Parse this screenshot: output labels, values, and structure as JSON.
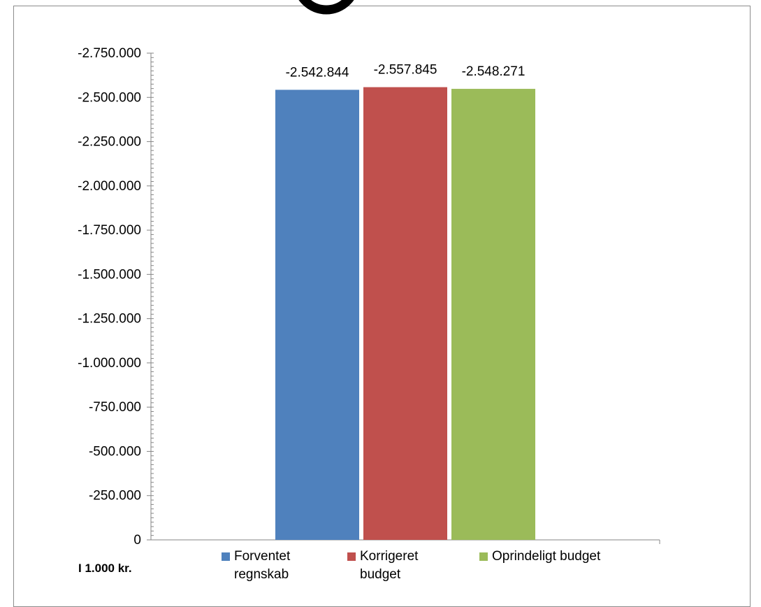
{
  "chart_data": {
    "type": "bar",
    "title": "",
    "xlabel": "",
    "ylabel": "",
    "y_axis_note": "I 1.000 kr.",
    "ylim": [
      0,
      -2750000
    ],
    "y_axis_inverted": true,
    "y_ticks": [
      0,
      -250000,
      -500000,
      -750000,
      -1000000,
      -1250000,
      -1500000,
      -1750000,
      -2000000,
      -2250000,
      -2500000,
      -2750000
    ],
    "y_tick_labels": [
      "0",
      "-250.000",
      "-500.000",
      "-750.000",
      "-1.000.000",
      "-1.250.000",
      "-1.500.000",
      "-1.750.000",
      "-2.000.000",
      "-2.250.000",
      "-2.500.000",
      "-2.750.000"
    ],
    "grid": false,
    "legend_position": "bottom",
    "series": [
      {
        "name": "Forventet\nregnskab",
        "value": -2542844,
        "data_label": "-2.542.844",
        "color": "#4f81bd"
      },
      {
        "name": "Korrigeret\nbudget",
        "value": -2557845,
        "data_label": "-2.557.845",
        "color": "#c0504d"
      },
      {
        "name": "Oprindeligt budget",
        "value": -2548271,
        "data_label": "-2.548.271",
        "color": "#9bbb59"
      }
    ]
  }
}
